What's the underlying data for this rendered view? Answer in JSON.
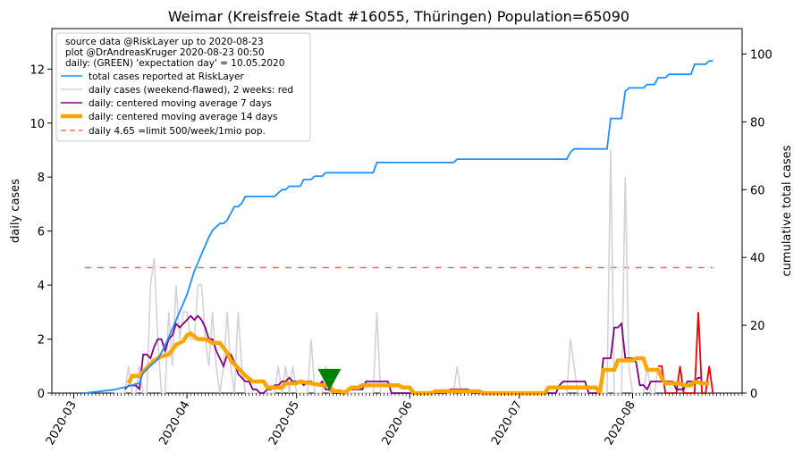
{
  "chart_data": {
    "type": "line",
    "title": "Weimar (Kreisfreie Stadt #16055, Thüringen) Population=65090",
    "ylabel_left": "daily cases",
    "ylabel_right": "cumulative total cases",
    "ylim_left": [
      0,
      13.5
    ],
    "ylim_right": [
      0,
      107.5
    ],
    "xlim": [
      "2020-02-24",
      "2020-08-31"
    ],
    "yticks_left": [
      "0",
      "2",
      "4",
      "6",
      "8",
      "10",
      "12"
    ],
    "yticks_right": [
      "0",
      "20",
      "40",
      "60",
      "80",
      "100"
    ],
    "xticks": [
      {
        "date": "2020-03-01",
        "label": "2020-03"
      },
      {
        "date": "2020-04-01",
        "label": "2020-04"
      },
      {
        "date": "2020-05-01",
        "label": "2020-05"
      },
      {
        "date": "2020-06-01",
        "label": "2020-06"
      },
      {
        "date": "2020-07-01",
        "label": "2020-07"
      },
      {
        "date": "2020-08-01",
        "label": "2020-08"
      }
    ],
    "colors": {
      "total": "#1e90ff",
      "daily": "#d3d3d3",
      "daily_recent": "#ee0000",
      "ma7": "#800080",
      "ma14": "#ffa500",
      "limit": "#ff6666",
      "expectation": "#008000",
      "left_label": "#800080",
      "right_label": "#1e90ff"
    },
    "legend": {
      "position": "top-left",
      "header": [
        "source data @RiskLayer up to 2020-08-23",
        "plot @DrAndreasKruger 2020-08-23 00:50",
        "daily: (GREEN) 'expectation day' = 10.05.2020"
      ],
      "entries": [
        {
          "key": "total",
          "label": "total cases reported at RiskLayer"
        },
        {
          "key": "daily",
          "label": "daily cases (weekend-flawed), 2 weeks: red"
        },
        {
          "key": "ma7",
          "label": "daily: centered moving average 7 days"
        },
        {
          "key": "ma14",
          "label": "daily: centered moving average 14 days"
        },
        {
          "key": "limit",
          "label": "daily 4.65 =limit 500/week/1mio pop."
        }
      ]
    },
    "limit_line": {
      "value": 4.65,
      "x_start": "2020-03-04",
      "x_end": "2020-08-23"
    },
    "expectation_day": {
      "date": "2020-05-10",
      "value": 0.5
    },
    "total_cumulative": [
      [
        "2020-03-04",
        0
      ],
      [
        "2020-03-12",
        1
      ],
      [
        "2020-03-16",
        2
      ],
      [
        "2020-03-19",
        3
      ],
      [
        "2020-03-20",
        6
      ],
      [
        "2020-03-22",
        8
      ],
      [
        "2020-03-24",
        10
      ],
      [
        "2020-03-26",
        14
      ],
      [
        "2020-03-28",
        19
      ],
      [
        "2020-03-30",
        24
      ],
      [
        "2020-04-01",
        29
      ],
      [
        "2020-04-03",
        36
      ],
      [
        "2020-04-05",
        41
      ],
      [
        "2020-04-07",
        46
      ],
      [
        "2020-04-08",
        48
      ],
      [
        "2020-04-09",
        49
      ],
      [
        "2020-04-10",
        50
      ],
      [
        "2020-04-11",
        50
      ],
      [
        "2020-04-12",
        51
      ],
      [
        "2020-04-13",
        53
      ],
      [
        "2020-04-14",
        55
      ],
      [
        "2020-04-15",
        55
      ],
      [
        "2020-04-16",
        56
      ],
      [
        "2020-04-17",
        58
      ],
      [
        "2020-04-25",
        58
      ],
      [
        "2020-04-26",
        59
      ],
      [
        "2020-04-27",
        60
      ],
      [
        "2020-04-28",
        60
      ],
      [
        "2020-04-29",
        61
      ],
      [
        "2020-05-02",
        61
      ],
      [
        "2020-05-03",
        63
      ],
      [
        "2020-05-05",
        63
      ],
      [
        "2020-05-06",
        64
      ],
      [
        "2020-05-08",
        64
      ],
      [
        "2020-05-09",
        65
      ],
      [
        "2020-05-22",
        65
      ],
      [
        "2020-05-23",
        68
      ],
      [
        "2020-06-13",
        68
      ],
      [
        "2020-06-14",
        69
      ],
      [
        "2020-07-14",
        69
      ],
      [
        "2020-07-15",
        71
      ],
      [
        "2020-07-16",
        72
      ],
      [
        "2020-07-25",
        72
      ],
      [
        "2020-07-26",
        81
      ],
      [
        "2020-07-29",
        81
      ],
      [
        "2020-07-30",
        89
      ],
      [
        "2020-07-31",
        90
      ],
      [
        "2020-08-04",
        90
      ],
      [
        "2020-08-05",
        91
      ],
      [
        "2020-08-07",
        91
      ],
      [
        "2020-08-08",
        93
      ],
      [
        "2020-08-10",
        93
      ],
      [
        "2020-08-11",
        94
      ],
      [
        "2020-08-17",
        94
      ],
      [
        "2020-08-18",
        97
      ],
      [
        "2020-08-21",
        97
      ],
      [
        "2020-08-22",
        98
      ],
      [
        "2020-08-23",
        98
      ]
    ],
    "daily_cases": [
      [
        "2020-03-12",
        0
      ],
      [
        "2020-03-13",
        0
      ],
      [
        "2020-03-14",
        0
      ],
      [
        "2020-03-15",
        0
      ],
      [
        "2020-03-16",
        1
      ],
      [
        "2020-03-17",
        0
      ],
      [
        "2020-03-18",
        0
      ],
      [
        "2020-03-19",
        1
      ],
      [
        "2020-03-20",
        0
      ],
      [
        "2020-03-21",
        0
      ],
      [
        "2020-03-22",
        4
      ],
      [
        "2020-03-23",
        5
      ],
      [
        "2020-03-24",
        2
      ],
      [
        "2020-03-25",
        0
      ],
      [
        "2020-03-26",
        0
      ],
      [
        "2020-03-27",
        3
      ],
      [
        "2020-03-28",
        1
      ],
      [
        "2020-03-29",
        4
      ],
      [
        "2020-03-30",
        2
      ],
      [
        "2020-03-31",
        3
      ],
      [
        "2020-04-01",
        3
      ],
      [
        "2020-04-02",
        2
      ],
      [
        "2020-04-03",
        2
      ],
      [
        "2020-04-04",
        4
      ],
      [
        "2020-04-05",
        4
      ],
      [
        "2020-04-06",
        2
      ],
      [
        "2020-04-07",
        1
      ],
      [
        "2020-04-08",
        3
      ],
      [
        "2020-04-09",
        1
      ],
      [
        "2020-04-10",
        0
      ],
      [
        "2020-04-11",
        1
      ],
      [
        "2020-04-12",
        3
      ],
      [
        "2020-04-13",
        1
      ],
      [
        "2020-04-14",
        0
      ],
      [
        "2020-04-15",
        3
      ],
      [
        "2020-04-16",
        1
      ],
      [
        "2020-04-17",
        0
      ],
      [
        "2020-04-18",
        0
      ],
      [
        "2020-04-19",
        0
      ],
      [
        "2020-04-20",
        0
      ],
      [
        "2020-04-21",
        0
      ],
      [
        "2020-04-22",
        0
      ],
      [
        "2020-04-23",
        0
      ],
      [
        "2020-04-24",
        0
      ],
      [
        "2020-04-25",
        0
      ],
      [
        "2020-04-26",
        1
      ],
      [
        "2020-04-27",
        0
      ],
      [
        "2020-04-28",
        1
      ],
      [
        "2020-04-29",
        0
      ],
      [
        "2020-04-30",
        1
      ],
      [
        "2020-05-01",
        0
      ],
      [
        "2020-05-02",
        0
      ],
      [
        "2020-05-03",
        0
      ],
      [
        "2020-05-04",
        0
      ],
      [
        "2020-05-05",
        2
      ],
      [
        "2020-05-06",
        0
      ],
      [
        "2020-05-07",
        0
      ],
      [
        "2020-05-08",
        0
      ],
      [
        "2020-05-09",
        1
      ],
      [
        "2020-05-10",
        0
      ],
      [
        "2020-05-11",
        0
      ],
      [
        "2020-05-12",
        0
      ],
      [
        "2020-05-13",
        0
      ],
      [
        "2020-05-14",
        0
      ],
      [
        "2020-05-15",
        0
      ],
      [
        "2020-05-16",
        0
      ],
      [
        "2020-05-17",
        0
      ],
      [
        "2020-05-18",
        0
      ],
      [
        "2020-05-19",
        0
      ],
      [
        "2020-05-20",
        0
      ],
      [
        "2020-05-21",
        0
      ],
      [
        "2020-05-22",
        0
      ],
      [
        "2020-05-23",
        3
      ],
      [
        "2020-05-24",
        0
      ],
      [
        "2020-05-25",
        0
      ],
      [
        "2020-06-13",
        0
      ],
      [
        "2020-06-14",
        1
      ],
      [
        "2020-06-15",
        0
      ],
      [
        "2020-07-13",
        0
      ],
      [
        "2020-07-14",
        0
      ],
      [
        "2020-07-15",
        2
      ],
      [
        "2020-07-16",
        1
      ],
      [
        "2020-07-17",
        0
      ],
      [
        "2020-07-18",
        0
      ],
      [
        "2020-07-25",
        0
      ],
      [
        "2020-07-26",
        9
      ],
      [
        "2020-07-27",
        0
      ],
      [
        "2020-07-28",
        0
      ],
      [
        "2020-07-29",
        0
      ],
      [
        "2020-07-30",
        8
      ],
      [
        "2020-07-31",
        1
      ],
      [
        "2020-08-01",
        0
      ],
      [
        "2020-08-03",
        0
      ],
      [
        "2020-08-04",
        0
      ],
      [
        "2020-08-05",
        1
      ],
      [
        "2020-08-06",
        0
      ],
      [
        "2020-08-07",
        0
      ],
      [
        "2020-08-08",
        1
      ]
    ],
    "daily_cases_recent": [
      [
        "2020-08-08",
        1
      ],
      [
        "2020-08-09",
        1
      ],
      [
        "2020-08-10",
        0
      ],
      [
        "2020-08-11",
        0
      ],
      [
        "2020-08-12",
        0
      ],
      [
        "2020-08-13",
        0
      ],
      [
        "2020-08-14",
        1
      ],
      [
        "2020-08-15",
        0
      ],
      [
        "2020-08-16",
        0
      ],
      [
        "2020-08-17",
        0
      ],
      [
        "2020-08-18",
        0
      ],
      [
        "2020-08-19",
        3
      ],
      [
        "2020-08-20",
        0
      ],
      [
        "2020-08-21",
        0
      ],
      [
        "2020-08-22",
        1
      ],
      [
        "2020-08-23",
        0
      ]
    ],
    "ma7": [
      [
        "2020-03-15",
        0.14
      ],
      [
        "2020-03-16",
        0.28
      ],
      [
        "2020-03-18",
        0.28
      ],
      [
        "2020-03-19",
        0.15
      ],
      [
        "2020-03-20",
        1.43
      ],
      [
        "2020-03-21",
        1.43
      ],
      [
        "2020-03-22",
        1.29
      ],
      [
        "2020-03-23",
        1.71
      ],
      [
        "2020-03-24",
        2.0
      ],
      [
        "2020-03-25",
        2.0
      ],
      [
        "2020-03-26",
        1.57
      ],
      [
        "2020-03-27",
        2.0
      ],
      [
        "2020-03-28",
        2.14
      ],
      [
        "2020-03-29",
        2.57
      ],
      [
        "2020-03-30",
        2.43
      ],
      [
        "2020-03-31",
        2.57
      ],
      [
        "2020-04-01",
        2.71
      ],
      [
        "2020-04-02",
        2.86
      ],
      [
        "2020-04-03",
        2.71
      ],
      [
        "2020-04-04",
        2.86
      ],
      [
        "2020-04-05",
        2.71
      ],
      [
        "2020-04-06",
        2.43
      ],
      [
        "2020-04-07",
        2.0
      ],
      [
        "2020-04-08",
        2.0
      ],
      [
        "2020-04-09",
        1.57
      ],
      [
        "2020-04-10",
        1.29
      ],
      [
        "2020-04-11",
        1.0
      ],
      [
        "2020-04-12",
        1.43
      ],
      [
        "2020-04-13",
        1.43
      ],
      [
        "2020-04-14",
        1.14
      ],
      [
        "2020-04-15",
        0.71
      ],
      [
        "2020-04-16",
        0.57
      ],
      [
        "2020-04-17",
        0.43
      ],
      [
        "2020-04-18",
        0.43
      ],
      [
        "2020-04-19",
        0.14
      ],
      [
        "2020-04-20",
        0.14
      ],
      [
        "2020-04-21",
        0.0
      ],
      [
        "2020-04-22",
        0.0
      ],
      [
        "2020-04-23",
        0.14
      ],
      [
        "2020-04-24",
        0.14
      ],
      [
        "2020-04-25",
        0.29
      ],
      [
        "2020-04-26",
        0.29
      ],
      [
        "2020-04-27",
        0.43
      ],
      [
        "2020-04-28",
        0.43
      ],
      [
        "2020-04-29",
        0.57
      ],
      [
        "2020-04-30",
        0.43
      ],
      [
        "2020-05-01",
        0.43
      ],
      [
        "2020-05-02",
        0.43
      ],
      [
        "2020-05-03",
        0.29
      ],
      [
        "2020-05-04",
        0.43
      ],
      [
        "2020-05-05",
        0.43
      ],
      [
        "2020-05-06",
        0.29
      ],
      [
        "2020-05-07",
        0.29
      ],
      [
        "2020-05-08",
        0.43
      ],
      [
        "2020-05-09",
        0.14
      ],
      [
        "2020-05-10",
        0.14
      ],
      [
        "2020-05-11",
        0.0
      ],
      [
        "2020-05-14",
        0.0
      ],
      [
        "2020-05-15",
        0.14
      ],
      [
        "2020-05-19",
        0.14
      ],
      [
        "2020-05-20",
        0.43
      ],
      [
        "2020-05-26",
        0.43
      ],
      [
        "2020-05-27",
        0.0
      ],
      [
        "2020-06-11",
        0.0
      ],
      [
        "2020-06-12",
        0.14
      ],
      [
        "2020-06-17",
        0.14
      ],
      [
        "2020-06-18",
        0.0
      ],
      [
        "2020-07-11",
        0.0
      ],
      [
        "2020-07-12",
        0.29
      ],
      [
        "2020-07-13",
        0.43
      ],
      [
        "2020-07-19",
        0.43
      ],
      [
        "2020-07-20",
        0.0
      ],
      [
        "2020-07-23",
        0.0
      ],
      [
        "2020-07-24",
        1.29
      ],
      [
        "2020-07-26",
        1.29
      ],
      [
        "2020-07-27",
        2.43
      ],
      [
        "2020-07-28",
        2.43
      ],
      [
        "2020-07-29",
        2.57
      ],
      [
        "2020-07-30",
        1.29
      ],
      [
        "2020-08-01",
        1.29
      ],
      [
        "2020-08-02",
        1.14
      ],
      [
        "2020-08-03",
        0.29
      ],
      [
        "2020-08-04",
        0.29
      ],
      [
        "2020-08-05",
        0.14
      ],
      [
        "2020-08-06",
        0.43
      ],
      [
        "2020-08-12",
        0.43
      ],
      [
        "2020-08-13",
        0.14
      ],
      [
        "2020-08-15",
        0.14
      ],
      [
        "2020-08-16",
        0.43
      ],
      [
        "2020-08-18",
        0.43
      ],
      [
        "2020-08-19",
        0.57
      ],
      [
        "2020-08-20",
        0.57
      ]
    ],
    "ma14": [
      [
        "2020-03-16",
        0.36
      ],
      [
        "2020-03-17",
        0.64
      ],
      [
        "2020-03-19",
        0.64
      ],
      [
        "2020-03-21",
        0.93
      ],
      [
        "2020-03-23",
        1.21
      ],
      [
        "2020-03-25",
        1.36
      ],
      [
        "2020-03-27",
        1.43
      ],
      [
        "2020-03-29",
        1.79
      ],
      [
        "2020-03-31",
        1.93
      ],
      [
        "2020-04-01",
        2.14
      ],
      [
        "2020-04-02",
        2.21
      ],
      [
        "2020-04-04",
        2.0
      ],
      [
        "2020-04-06",
        2.0
      ],
      [
        "2020-04-08",
        1.86
      ],
      [
        "2020-04-10",
        1.86
      ],
      [
        "2020-04-12",
        1.5
      ],
      [
        "2020-04-13",
        1.21
      ],
      [
        "2020-04-15",
        0.93
      ],
      [
        "2020-04-17",
        0.64
      ],
      [
        "2020-04-19",
        0.43
      ],
      [
        "2020-04-22",
        0.43
      ],
      [
        "2020-04-23",
        0.21
      ],
      [
        "2020-04-25",
        0.21
      ],
      [
        "2020-04-27",
        0.21
      ],
      [
        "2020-04-28",
        0.36
      ],
      [
        "2020-05-01",
        0.36
      ],
      [
        "2020-05-02",
        0.43
      ],
      [
        "2020-05-05",
        0.36
      ],
      [
        "2020-05-08",
        0.29
      ],
      [
        "2020-05-10",
        0.29
      ],
      [
        "2020-05-11",
        0.07
      ],
      [
        "2020-05-13",
        0.07
      ],
      [
        "2020-05-14",
        0.0
      ],
      [
        "2020-05-16",
        0.21
      ],
      [
        "2020-05-18",
        0.21
      ],
      [
        "2020-05-19",
        0.29
      ],
      [
        "2020-05-29",
        0.29
      ],
      [
        "2020-05-30",
        0.21
      ],
      [
        "2020-06-01",
        0.21
      ],
      [
        "2020-06-02",
        0.0
      ],
      [
        "2020-06-07",
        0.0
      ],
      [
        "2020-06-08",
        0.07
      ],
      [
        "2020-06-20",
        0.07
      ],
      [
        "2020-06-21",
        0.0
      ],
      [
        "2020-07-08",
        0.0
      ],
      [
        "2020-07-09",
        0.21
      ],
      [
        "2020-07-22",
        0.21
      ],
      [
        "2020-07-23",
        0.0
      ],
      [
        "2020-07-24",
        0.86
      ],
      [
        "2020-07-27",
        0.86
      ],
      [
        "2020-07-28",
        1.21
      ],
      [
        "2020-08-01",
        1.21
      ],
      [
        "2020-08-02",
        1.29
      ],
      [
        "2020-08-04",
        1.29
      ],
      [
        "2020-08-05",
        0.86
      ],
      [
        "2020-08-08",
        0.86
      ],
      [
        "2020-08-09",
        0.57
      ],
      [
        "2020-08-10",
        0.36
      ],
      [
        "2020-08-14",
        0.36
      ],
      [
        "2020-08-15",
        0.29
      ],
      [
        "2020-08-17",
        0.29
      ],
      [
        "2020-08-18",
        0.43
      ],
      [
        "2020-08-20",
        0.36
      ],
      [
        "2020-08-22",
        0.36
      ]
    ]
  }
}
